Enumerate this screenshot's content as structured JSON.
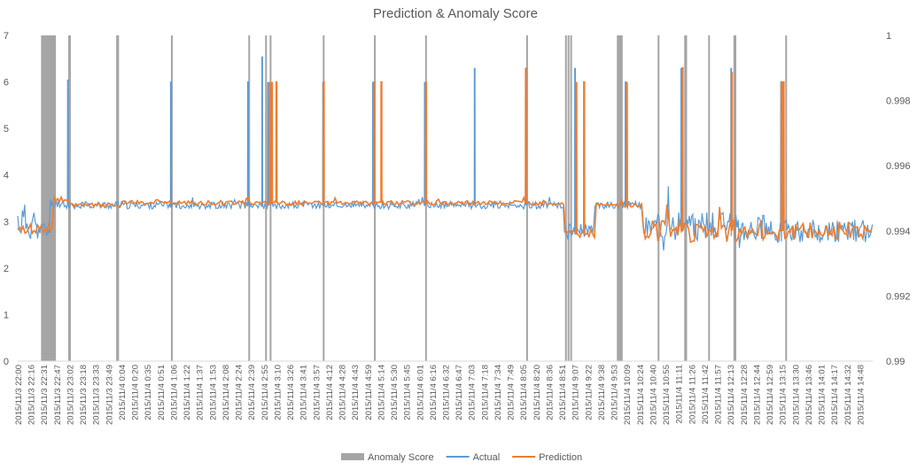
{
  "chart_data": {
    "type": "line",
    "title": "Prediction & Anomaly Score",
    "legend_position": "bottom",
    "grid": false,
    "y_left": {
      "range": [
        0,
        7
      ],
      "ticks": [
        "0",
        "1",
        "2",
        "3",
        "4",
        "5",
        "6",
        "7"
      ]
    },
    "y_right": {
      "range": [
        0.99,
        1
      ],
      "ticks": [
        "0.99",
        "0.992",
        "0.994",
        "0.996",
        "0.998",
        "1"
      ]
    },
    "x_tick_labels": [
      "2015/11/3 22:00",
      "2015/11/3 22:16",
      "2015/11/3 22:31",
      "2015/11/3 22:47",
      "2015/11/3 23:02",
      "2015/11/3 23:18",
      "2015/11/3 23:33",
      "2015/11/3 23:49",
      "2015/11/4 0:04",
      "2015/11/4 0:20",
      "2015/11/4 0:35",
      "2015/11/4 0:51",
      "2015/11/4 1:06",
      "2015/11/4 1:22",
      "2015/11/4 1:37",
      "2015/11/4 1:53",
      "2015/11/4 2:08",
      "2015/11/4 2:24",
      "2015/11/4 2:39",
      "2015/11/4 2:55",
      "2015/11/4 3:10",
      "2015/11/4 3:26",
      "2015/11/4 3:41",
      "2015/11/4 3:57",
      "2015/11/4 4:12",
      "2015/11/4 4:28",
      "2015/11/4 4:43",
      "2015/11/4 4:59",
      "2015/11/4 5:14",
      "2015/11/4 5:30",
      "2015/11/4 5:45",
      "2015/11/4 6:01",
      "2015/11/4 6:16",
      "2015/11/4 6:32",
      "2015/11/4 6:47",
      "2015/11/4 7:03",
      "2015/11/4 7:18",
      "2015/11/4 7:34",
      "2015/11/4 7:49",
      "2015/11/4 8:05",
      "2015/11/4 8:20",
      "2015/11/4 8:36",
      "2015/11/4 8:51",
      "2015/11/4 9:07",
      "2015/11/4 9:22",
      "2015/11/4 9:38",
      "2015/11/4 9:53",
      "2015/11/4 10:09",
      "2015/11/4 10:24",
      "2015/11/4 10:40",
      "2015/11/4 10:55",
      "2015/11/4 11:11",
      "2015/11/4 11:26",
      "2015/11/4 11:42",
      "2015/11/4 11:57",
      "2015/11/4 12:13",
      "2015/11/4 12:28",
      "2015/11/4 12:44",
      "2015/11/4 12:59",
      "2015/11/4 13:15",
      "2015/11/4 13:30",
      "2015/11/4 13:46",
      "2015/11/4 14:01",
      "2015/11/4 14:17",
      "2015/11/4 14:32",
      "2015/11/4 14:48"
    ],
    "series": [
      {
        "name": "Anomaly Score",
        "axis": "right",
        "kind": "bar",
        "color": "#a5a5a5",
        "anomalies": [
          {
            "x": 1.8,
            "width": 1.15,
            "score": 1
          },
          {
            "x": 3.9,
            "width": 0.2,
            "score": 1
          },
          {
            "x": 7.6,
            "width": 0.22,
            "score": 1
          },
          {
            "x": 11.83,
            "width": 0.07,
            "score": 1
          },
          {
            "x": 17.8,
            "width": 0.07,
            "score": 1
          },
          {
            "x": 19.1,
            "width": 0.07,
            "score": 1
          },
          {
            "x": 19.45,
            "width": 0.07,
            "score": 1
          },
          {
            "x": 23.55,
            "width": 0.12,
            "score": 1
          },
          {
            "x": 27.5,
            "width": 0.07,
            "score": 1
          },
          {
            "x": 31.45,
            "width": 0.12,
            "score": 1
          },
          {
            "x": 39.25,
            "width": 0.12,
            "score": 1
          },
          {
            "x": 42.25,
            "width": 0.07,
            "score": 1
          },
          {
            "x": 42.45,
            "width": 0.07,
            "score": 1
          },
          {
            "x": 42.65,
            "width": 0.07,
            "score": 1
          },
          {
            "x": 46.25,
            "width": 0.45,
            "score": 1
          },
          {
            "x": 49.4,
            "width": 0.07,
            "score": 1
          },
          {
            "x": 51.45,
            "width": 0.22,
            "score": 1
          },
          {
            "x": 53.3,
            "width": 0.07,
            "score": 1
          },
          {
            "x": 55.25,
            "width": 0.22,
            "score": 1
          },
          {
            "x": 59.25,
            "width": 0.12,
            "score": 1
          }
        ]
      },
      {
        "name": "Actual",
        "axis": "left",
        "kind": "line",
        "color": "#5b9bd5",
        "baseline_segments": [
          [
            0,
            3.0,
            0.4
          ],
          [
            1.5,
            2.8,
            0.2
          ],
          [
            2.5,
            3.4,
            0.1
          ],
          [
            3.6,
            3.35,
            0.08
          ],
          [
            42.2,
            2.8,
            0.15
          ],
          [
            44.5,
            3.35,
            0.08
          ],
          [
            48.2,
            2.9,
            0.3
          ],
          [
            58.0,
            2.8,
            0.25
          ],
          [
            66,
            2.75,
            0.2
          ]
        ],
        "spikes": [
          [
            3.85,
            6.05
          ],
          [
            11.8,
            6.0
          ],
          [
            17.75,
            6.0
          ],
          [
            18.85,
            6.55
          ],
          [
            19.3,
            6.0
          ],
          [
            23.55,
            6.0
          ],
          [
            27.4,
            6.0
          ],
          [
            31.4,
            6.0
          ],
          [
            35.25,
            6.3
          ],
          [
            39.25,
            6.3
          ],
          [
            43.0,
            6.3
          ],
          [
            46.9,
            6.0
          ],
          [
            51.2,
            6.3
          ],
          [
            55.05,
            6.3
          ],
          [
            58.9,
            6.0
          ]
        ]
      },
      {
        "name": "Prediction",
        "axis": "left",
        "kind": "line",
        "color": "#ed7d31",
        "baseline_segments": [
          [
            0,
            2.85,
            0.1
          ],
          [
            2.75,
            3.45,
            0.05
          ],
          [
            3.95,
            3.35,
            0.05
          ],
          [
            8.0,
            3.4,
            0.05
          ],
          [
            42.25,
            2.75,
            0.1
          ],
          [
            44.6,
            3.35,
            0.05
          ],
          [
            48.3,
            2.8,
            0.25
          ],
          [
            58.0,
            2.8,
            0.2
          ],
          [
            66,
            2.75,
            0.1
          ]
        ],
        "spikes": [
          [
            19.45,
            6.0
          ],
          [
            19.6,
            6.0
          ],
          [
            19.95,
            6.0
          ],
          [
            23.6,
            6.0
          ],
          [
            27.5,
            6.0
          ],
          [
            28.05,
            6.0
          ],
          [
            31.5,
            6.0
          ],
          [
            39.2,
            6.3
          ],
          [
            43.1,
            6.0
          ],
          [
            43.7,
            6.0
          ],
          [
            47.0,
            6.0
          ],
          [
            51.3,
            6.3
          ],
          [
            55.1,
            6.2
          ],
          [
            58.95,
            6.0
          ],
          [
            59.1,
            6.0
          ]
        ]
      }
    ]
  }
}
